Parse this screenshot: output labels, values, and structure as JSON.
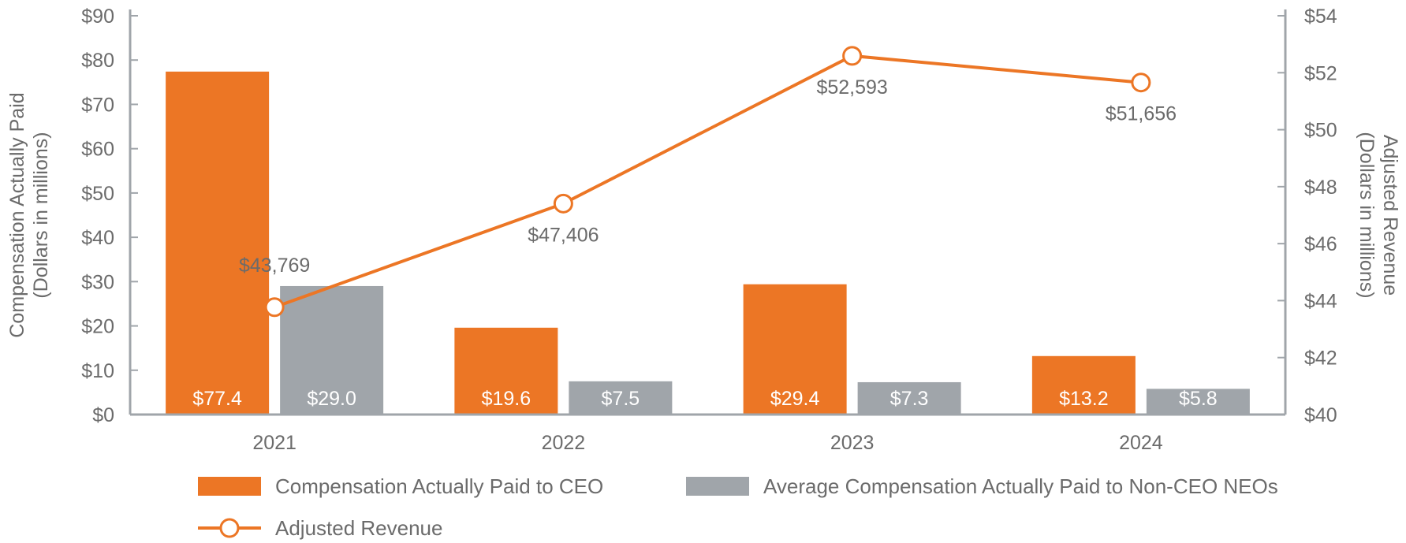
{
  "chart_data": {
    "type": "bar",
    "categories": [
      "2021",
      "2022",
      "2023",
      "2024"
    ],
    "series": [
      {
        "name": "Compensation Actually Paid to CEO",
        "kind": "bar",
        "axis": "left",
        "color": "#ec7625",
        "values": [
          77.4,
          19.6,
          29.4,
          13.2
        ],
        "labels": [
          "$77.4",
          "$19.6",
          "$29.4",
          "$13.2"
        ]
      },
      {
        "name": "Average Compensation Actually Paid to Non-CEO NEOs",
        "kind": "bar",
        "axis": "left",
        "color": "#a0a5aa",
        "values": [
          29.0,
          7.5,
          7.3,
          5.8
        ],
        "labels": [
          "$29.0",
          "$7.5",
          "$7.3",
          "$5.8"
        ]
      },
      {
        "name": "Adjusted Revenue",
        "kind": "line",
        "axis": "right",
        "color": "#ec7625",
        "values": [
          43.769,
          47.406,
          52.593,
          51.656
        ],
        "labels": [
          "$43,769",
          "$47,406",
          "$52,593",
          "$51,656"
        ]
      }
    ],
    "left_axis": {
      "title_line1": "Compensation Actually Paid",
      "title_line2": "(Dollars in millions)",
      "range": [
        0,
        90
      ],
      "ticks": [
        0,
        10,
        20,
        30,
        40,
        50,
        60,
        70,
        80,
        90
      ],
      "tick_labels": [
        "$0",
        "$10",
        "$20",
        "$30",
        "$40",
        "$50",
        "$60",
        "$70",
        "$80",
        "$90"
      ]
    },
    "right_axis": {
      "title_line1": "Adjusted Revenue",
      "title_line2": "(Dollars in millions)",
      "range": [
        40,
        54
      ],
      "ticks": [
        40,
        42,
        44,
        46,
        48,
        50,
        52,
        54
      ],
      "tick_labels": [
        "$40",
        "$42",
        "$44",
        "$46",
        "$48",
        "$50",
        "$52",
        "$54"
      ]
    },
    "axis_color": "#a0a5aa",
    "label_color": "#6b6b6b",
    "grid": false,
    "legend_position": "bottom"
  }
}
